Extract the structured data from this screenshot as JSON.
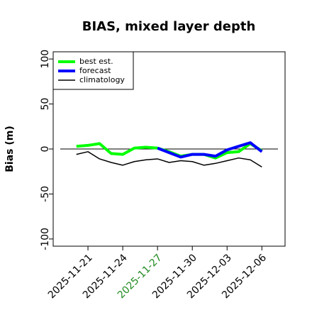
{
  "chart_data": {
    "type": "line",
    "title": "BIAS, mixed layer depth",
    "y_label": "Bias (m)",
    "x": [
      "2025-11-20",
      "2025-11-21",
      "2025-11-22",
      "2025-11-23",
      "2025-11-24",
      "2025-11-25",
      "2025-11-26",
      "2025-11-27",
      "2025-11-28",
      "2025-11-29",
      "2025-11-30",
      "2025-12-01",
      "2025-12-02",
      "2025-12-03",
      "2025-12-04",
      "2025-12-05",
      "2025-12-06"
    ],
    "series": [
      {
        "name": "best est.",
        "color": "#00ff00",
        "width": 4,
        "values": [
          3,
          4,
          6,
          -5,
          -6,
          1,
          2,
          1,
          -3,
          -8,
          -6,
          -6,
          -10,
          -4,
          -3,
          6,
          -2
        ]
      },
      {
        "name": "forecast",
        "color": "#0000ff",
        "width": 4,
        "values": [
          null,
          null,
          null,
          null,
          null,
          null,
          null,
          1,
          -4,
          -9,
          -6,
          -6,
          -8,
          -1,
          3,
          7,
          -3
        ]
      },
      {
        "name": "climatology",
        "color": "#000000",
        "width": 1.5,
        "values": [
          -6,
          -3,
          -11,
          -15,
          -18,
          -14,
          -12,
          -11,
          -15,
          -13,
          -14,
          -18,
          -16,
          -13,
          -10,
          -12,
          -20
        ]
      }
    ],
    "xlim": [
      "2025-11-18",
      "2025-12-08"
    ],
    "xticks": [
      "2025-11-21",
      "2025-11-24",
      "2025-11-27",
      "2025-11-30",
      "2025-12-03",
      "2025-12-06"
    ],
    "xtick_colors": [
      "#000000",
      "#000000",
      "#228b22",
      "#000000",
      "#000000",
      "#000000"
    ],
    "ylim": [
      -108,
      108
    ],
    "yticks": [
      -100,
      -50,
      0,
      50,
      100
    ],
    "hline": 0,
    "legend": "top-left"
  }
}
